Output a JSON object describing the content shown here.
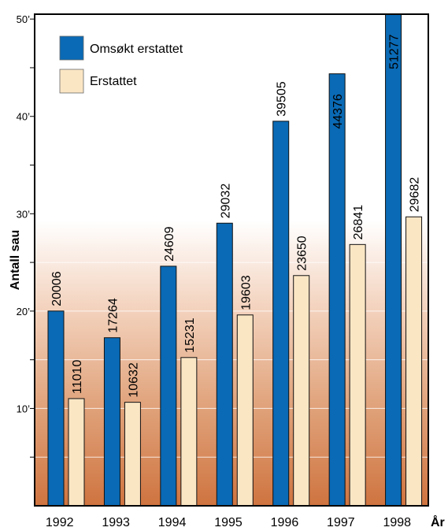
{
  "chart_data": {
    "type": "bar",
    "title": "",
    "xlabel": "År",
    "ylabel": "Antall sau",
    "categories": [
      "1992",
      "1993",
      "1994",
      "1995",
      "1996",
      "1997",
      "1998"
    ],
    "series": [
      {
        "name": "Omsøkt erstattet",
        "color": "#0a6ab5",
        "values": [
          20006,
          17264,
          24609,
          29032,
          39505,
          44376,
          51277
        ]
      },
      {
        "name": "Erstattet",
        "color": "#fbe6c4",
        "values": [
          11010,
          10632,
          15231,
          19603,
          23650,
          26841,
          29682
        ]
      }
    ],
    "ylim": [
      0,
      50500
    ],
    "yticks": [
      10000,
      20000,
      30000,
      40000,
      50000
    ],
    "ytick_labels": [
      "10’",
      "20’",
      "30’",
      "40’",
      "50’"
    ],
    "minor_ticks": [
      5000,
      15000,
      25000,
      35000,
      45000
    ],
    "grid": true,
    "legend_position": "top-left",
    "background": "gradient white to orange-brown"
  }
}
